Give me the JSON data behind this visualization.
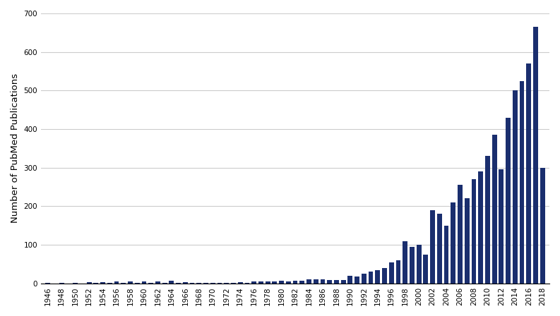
{
  "years": [
    1946,
    1947,
    1948,
    1949,
    1950,
    1951,
    1952,
    1953,
    1954,
    1955,
    1956,
    1957,
    1958,
    1959,
    1960,
    1961,
    1962,
    1963,
    1964,
    1965,
    1966,
    1967,
    1968,
    1969,
    1970,
    1971,
    1972,
    1973,
    1974,
    1975,
    1976,
    1977,
    1978,
    1979,
    1980,
    1981,
    1982,
    1983,
    1984,
    1985,
    1986,
    1987,
    1988,
    1989,
    1990,
    1991,
    1992,
    1993,
    1994,
    1995,
    1996,
    1997,
    1998,
    1999,
    2000,
    2001,
    2002,
    2003,
    2004,
    2005,
    2006,
    2007,
    2008,
    2009,
    2010,
    2011,
    2012,
    2013,
    2014,
    2015,
    2016,
    2017,
    2018
  ],
  "values": [
    1,
    0,
    1,
    0,
    2,
    0,
    3,
    1,
    3,
    2,
    4,
    2,
    5,
    2,
    4,
    2,
    5,
    2,
    6,
    2,
    3,
    2,
    2,
    2,
    2,
    1,
    1,
    1,
    3,
    1,
    5,
    4,
    5,
    5,
    6,
    5,
    7,
    6,
    10,
    10,
    10,
    8,
    8,
    8,
    20,
    18,
    25,
    30,
    35,
    40,
    55,
    60,
    110,
    95,
    100,
    75,
    190,
    180,
    150,
    210,
    255,
    220,
    270,
    290,
    330,
    385,
    295,
    430,
    500,
    525,
    570,
    665,
    300
  ],
  "bar_color": "#1a2e6e",
  "ylabel": "Number of PubMed Publications",
  "ylim": [
    0,
    700
  ],
  "yticks": [
    0,
    100,
    200,
    300,
    400,
    500,
    600,
    700
  ],
  "bg_color": "#ffffff",
  "grid_color": "#cccccc",
  "tick_label_fontsize": 7.5,
  "ylabel_fontsize": 9.5
}
